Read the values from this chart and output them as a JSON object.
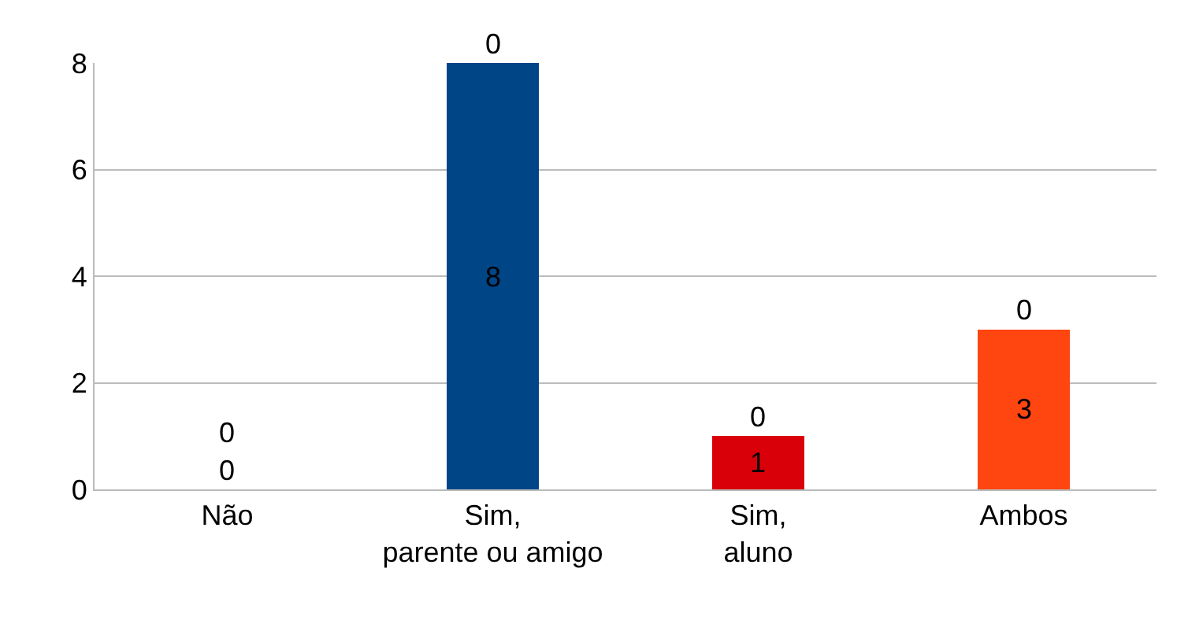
{
  "chart_data": {
    "type": "bar",
    "stacked": true,
    "categories": [
      "Não",
      "Sim, parente ou amigo",
      "Sim, aluno",
      "Ambos"
    ],
    "series": [
      {
        "colors": [
          "#e8410f",
          "#004586",
          "#d9000a",
          "#ff4510"
        ],
        "values": [
          0,
          8,
          1,
          3
        ]
      },
      {
        "colors": [
          "#c8380c",
          "#003a70",
          "#b80008",
          "#d93a0c"
        ],
        "values": [
          0,
          0,
          0,
          0
        ]
      }
    ],
    "ylim": [
      0,
      8
    ],
    "yticks": [
      0,
      2,
      4,
      6,
      8
    ],
    "grid": "y",
    "data_labels": true
  }
}
